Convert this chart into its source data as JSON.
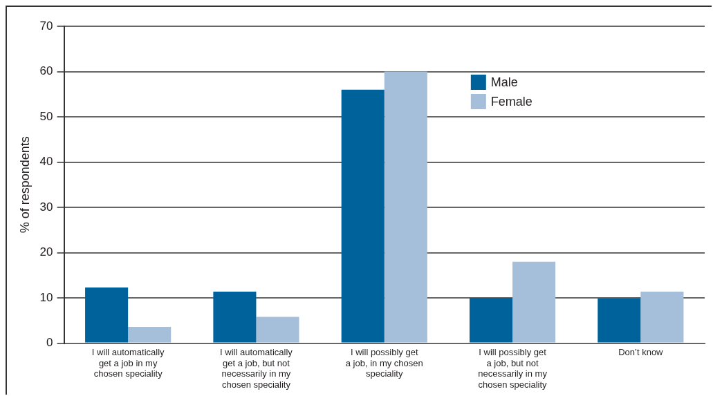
{
  "chart_data": {
    "type": "bar",
    "ylabel": "% of respondents",
    "categories": [
      "I will automatically get a job in my chosen speciality",
      "I will automatically get a job, but not necessarily in my chosen speciality",
      "I will possibly get a job, in my chosen speciality",
      "I will possibly get a job, but not necessarily in my chosen speciality",
      "Don’t know"
    ],
    "series": [
      {
        "name": "Male",
        "color": "#00629b",
        "values": [
          12.3,
          11.4,
          56,
          10,
          9.9
        ]
      },
      {
        "name": "Female",
        "color": "#a5bed9",
        "values": [
          3.6,
          5.8,
          60,
          18,
          11.4
        ]
      }
    ],
    "ylim": [
      0,
      70
    ],
    "yticks": [
      0,
      10,
      20,
      30,
      40,
      50,
      60,
      70
    ],
    "grid": "y",
    "legend": "top right"
  }
}
